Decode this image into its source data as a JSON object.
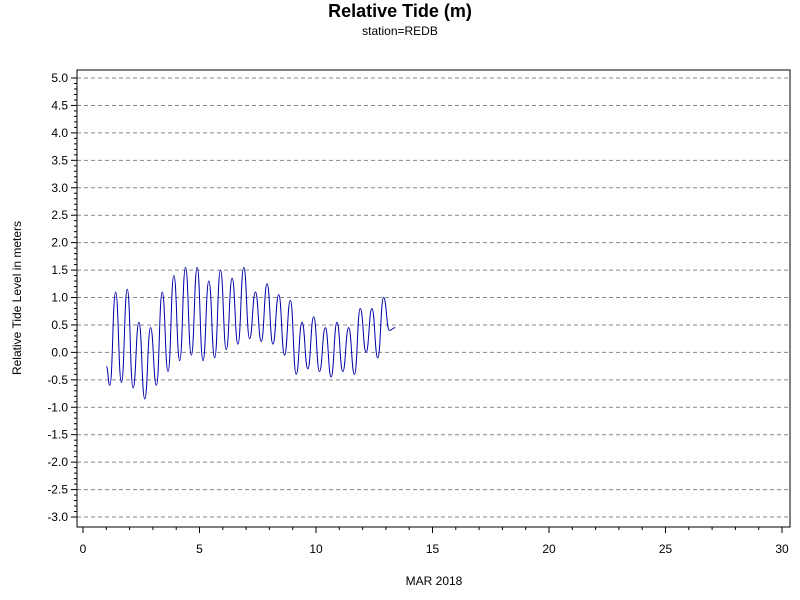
{
  "title": "Relative Tide (m)",
  "subtitle": "station=REDB",
  "chart_data": {
    "type": "line",
    "title": "Relative Tide (m)",
    "subtitle": "station=REDB",
    "xlabel": "MAR 2018",
    "ylabel": "Relative Tide Level in meters",
    "xlim": [
      0,
      30
    ],
    "ylim": [
      -3.0,
      5.0
    ],
    "x_ticks": [
      "0",
      "5",
      "10",
      "15",
      "20",
      "25",
      "30"
    ],
    "x_tick_values": [
      0,
      5,
      10,
      15,
      20,
      25,
      30
    ],
    "y_ticks": [
      "5.0",
      "4.5",
      "4.0",
      "3.5",
      "3.0",
      "2.5",
      "2.0",
      "1.5",
      "1.0",
      "0.5",
      "0.0",
      "-0.5",
      "-1.0",
      "-1.5",
      "-2.0",
      "-2.5",
      "-3.0"
    ],
    "y_tick_values": [
      5.0,
      4.5,
      4.0,
      3.5,
      3.0,
      2.5,
      2.0,
      1.5,
      1.0,
      0.5,
      0.0,
      -0.5,
      -1.0,
      -1.5,
      -2.0,
      -2.5,
      -3.0
    ],
    "grid": "horizontal dashed at 0.5 m",
    "line_color": "#0000aa",
    "series": [
      {
        "x": [
          1.0,
          1.15,
          1.4,
          1.65,
          1.9,
          2.15,
          2.4,
          2.65,
          2.9,
          3.15,
          3.4,
          3.65,
          3.9,
          4.15,
          4.4,
          4.65,
          4.9,
          5.15,
          5.4,
          5.65,
          5.9,
          6.15,
          6.4,
          6.65,
          6.9,
          7.15,
          7.4,
          7.65,
          7.9,
          8.15,
          8.4,
          8.65,
          8.9,
          9.15,
          9.4,
          9.65,
          9.9,
          10.15,
          10.4,
          10.65,
          10.9,
          11.15,
          11.4,
          11.65,
          11.9,
          12.15,
          12.4,
          12.65,
          12.9,
          13.15,
          13.4
        ],
        "y": [
          -0.25,
          -0.6,
          1.1,
          -0.55,
          1.15,
          -0.65,
          0.55,
          -0.85,
          0.45,
          -0.6,
          1.1,
          -0.35,
          1.4,
          -0.15,
          1.55,
          -0.05,
          1.55,
          -0.15,
          1.3,
          -0.1,
          1.5,
          0.05,
          1.35,
          0.15,
          1.55,
          0.25,
          1.1,
          0.2,
          1.25,
          0.15,
          1.05,
          -0.05,
          0.95,
          -0.4,
          0.55,
          -0.3,
          0.65,
          -0.35,
          0.45,
          -0.45,
          0.55,
          -0.35,
          0.45,
          -0.4,
          0.8,
          0.0,
          0.8,
          -0.1,
          1.0,
          0.4,
          0.45
        ]
      }
    ]
  }
}
